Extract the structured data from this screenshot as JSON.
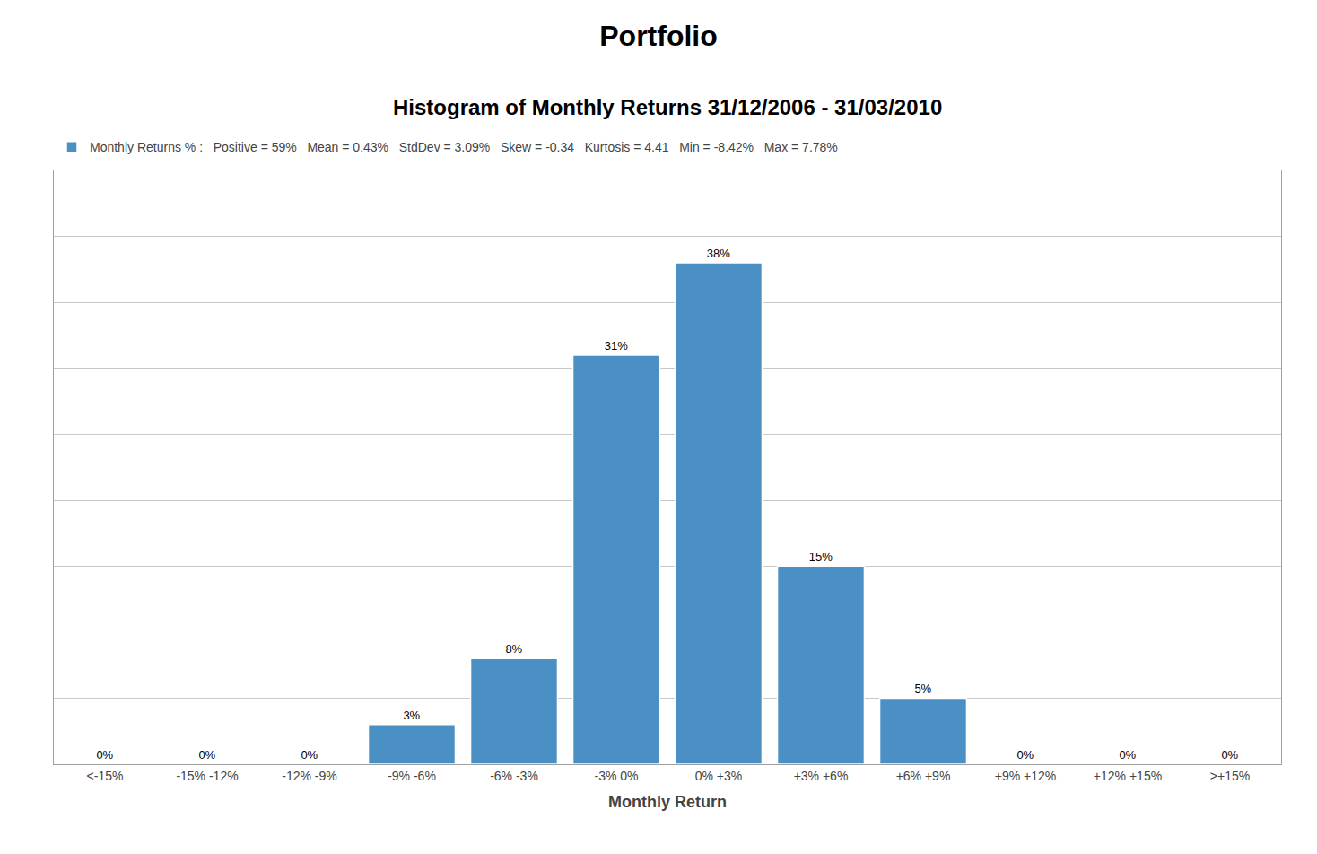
{
  "chart_data": {
    "type": "bar",
    "title": "Portfolio",
    "subtitle": "Histogram of Monthly Returns 31/12/2006 - 31/03/2010",
    "x_label": "Monthly Return",
    "categories": [
      "<-15%",
      "-15% -12%",
      "-12% -9%",
      "-9% -6%",
      "-6% -3%",
      "-3% 0%",
      "0% +3%",
      "+3% +6%",
      "+6% +9%",
      "+9% +12%",
      "+12% +15%",
      ">+15%"
    ],
    "series": [
      {
        "name": "Monthly Returns % :   Positive = 59%   Mean = 0.43%   StdDev = 3.09%   Skew = -0.34   Kurtosis = 4.41   Min = -8.42%   Max = 7.78%",
        "color": "#4A90C4",
        "values": [
          0,
          0,
          0,
          3,
          8,
          31,
          38,
          15,
          5,
          0,
          0,
          0
        ],
        "value_labels": [
          "0%",
          "0%",
          "0%",
          "3%",
          "8%",
          "31%",
          "38%",
          "15%",
          "5%",
          "0%",
          "0%",
          "0%"
        ]
      }
    ],
    "ylim": [
      0,
      45
    ],
    "yticks": [
      0,
      5,
      10,
      15,
      20,
      25,
      30,
      35,
      40,
      45
    ],
    "grid": true,
    "legend": "upper left",
    "data_labels": true,
    "tick_labels": "x"
  }
}
